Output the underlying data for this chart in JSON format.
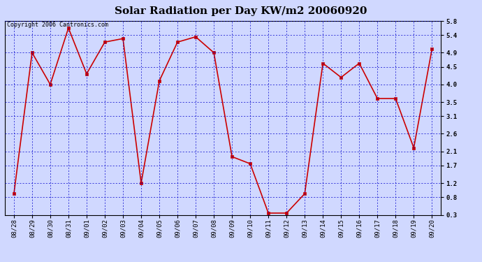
{
  "title": "Solar Radiation per Day KW/m2 20060920",
  "copyright": "Copyright 2006 Cantronics.com",
  "dates": [
    "08/28",
    "08/29",
    "08/30",
    "08/31",
    "09/01",
    "09/02",
    "09/03",
    "09/04",
    "09/05",
    "09/06",
    "09/07",
    "09/08",
    "09/09",
    "09/10",
    "09/11",
    "09/12",
    "09/13",
    "09/14",
    "09/15",
    "09/16",
    "09/17",
    "09/18",
    "09/19",
    "09/20"
  ],
  "values": [
    0.9,
    4.9,
    4.0,
    5.6,
    4.3,
    5.2,
    5.3,
    1.2,
    4.1,
    5.2,
    5.35,
    4.9,
    1.95,
    1.75,
    0.35,
    0.35,
    0.9,
    4.6,
    4.2,
    4.6,
    3.6,
    3.6,
    2.2,
    5.0
  ],
  "line_color": "#cc0000",
  "marker_color": "#cc0000",
  "bg_color": "#d0d8ff",
  "plot_bg_color": "#d0d8ff",
  "grid_color": "#0000cc",
  "border_color": "#000000",
  "ymin": 0.3,
  "ymax": 5.8,
  "yticks": [
    0.3,
    0.8,
    1.2,
    1.7,
    2.1,
    2.6,
    3.1,
    3.5,
    4.0,
    4.5,
    4.9,
    5.4,
    5.8
  ],
  "title_fontsize": 11,
  "tick_fontsize": 6.5,
  "copyright_fontsize": 6.0
}
